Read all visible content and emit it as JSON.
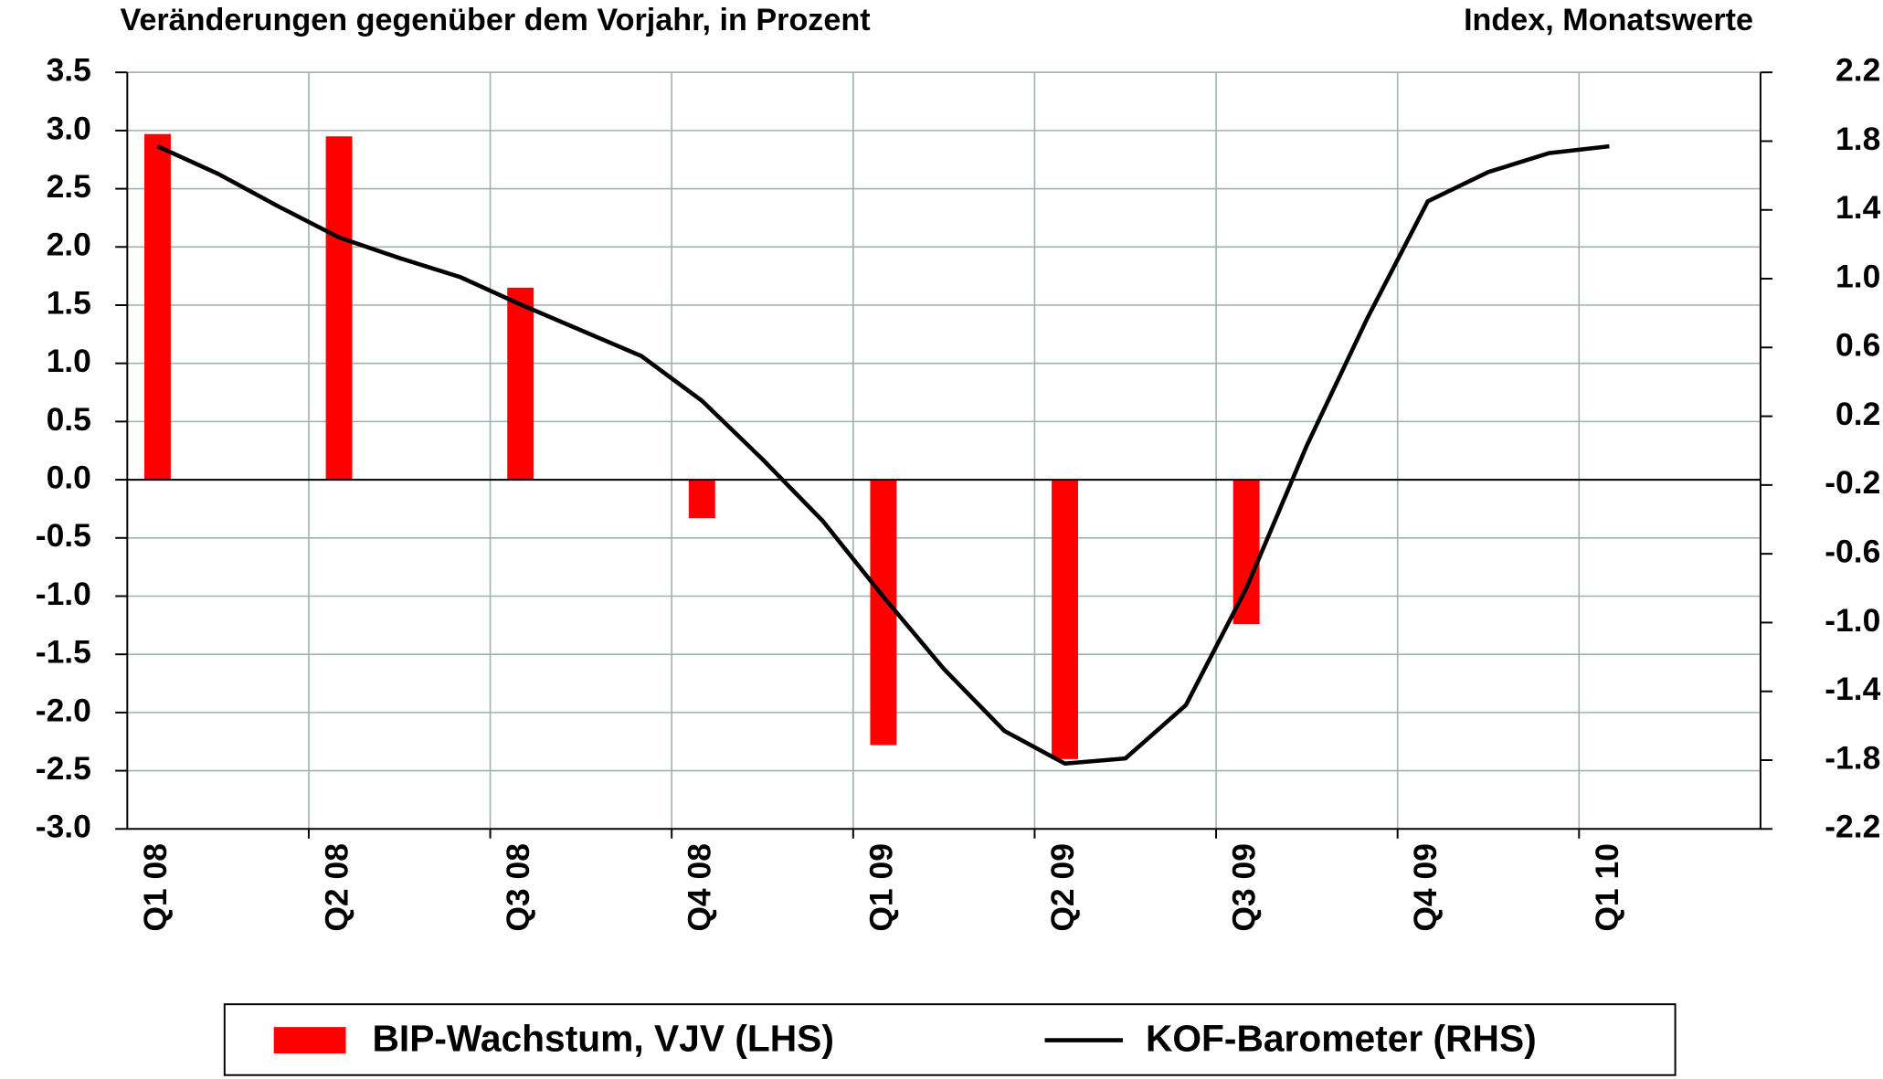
{
  "chart_data": {
    "type": "bar_line",
    "title_left": "Veränderungen gegenüber dem Vorjahr, in Prozent",
    "title_right": "Index, Monatswerte",
    "categories": [
      "Q1 08",
      null,
      null,
      "Q2 08",
      null,
      null,
      "Q3 08",
      null,
      null,
      "Q4 08",
      null,
      null,
      "Q1 09",
      null,
      null,
      "Q2 09",
      null,
      null,
      "Q3 09",
      null,
      null,
      "Q4 09",
      null,
      null,
      "Q1 10",
      null,
      null
    ],
    "series": [
      {
        "name": "BIP-Wachstum, VJV (LHS)",
        "type": "bar",
        "color": "#ff0000",
        "values": [
          2.97,
          null,
          null,
          2.95,
          null,
          null,
          1.65,
          null,
          null,
          -0.33,
          null,
          null,
          -2.28,
          null,
          null,
          -2.4,
          null,
          null,
          -1.24,
          null,
          null,
          null,
          null,
          null,
          null,
          null,
          null
        ]
      },
      {
        "name": "KOF-Barometer (RHS)",
        "type": "line",
        "axis": "y2",
        "color": "#000000",
        "values": [
          1.77,
          1.61,
          1.42,
          1.24,
          1.12,
          1.01,
          0.85,
          0.7,
          0.55,
          0.29,
          -0.05,
          -0.41,
          -0.85,
          -1.27,
          -1.63,
          -1.82,
          -1.79,
          -1.48,
          -0.8,
          0.03,
          0.77,
          1.45,
          1.62,
          1.73,
          1.77,
          null,
          null
        ]
      }
    ],
    "ylim": [
      -3,
      3.5
    ],
    "yticks": [
      3.5,
      {
        "value": 3,
        "label": "3.0"
      },
      2.5,
      {
        "value": 2,
        "label": "2.0"
      },
      1.5,
      {
        "value": 1,
        "label": "1.0"
      },
      0.5,
      {
        "value": 0,
        "label": "0.0"
      },
      -0.5,
      {
        "value": -1,
        "label": "-1.0"
      },
      -1.5,
      {
        "value": -2,
        "label": "-2.0"
      },
      -2.5,
      {
        "value": -3,
        "label": "-3.0"
      }
    ],
    "y2lim": [
      -2.2,
      2.2
    ],
    "y2ticks": [
      2.2,
      1.8,
      1.4,
      {
        "value": 1,
        "label": "1.0"
      },
      0.6,
      0.2,
      -0.2,
      -0.6,
      {
        "value": -1,
        "label": "-1.0"
      },
      -1.4,
      -1.8,
      -2.2
    ],
    "grid": true
  }
}
